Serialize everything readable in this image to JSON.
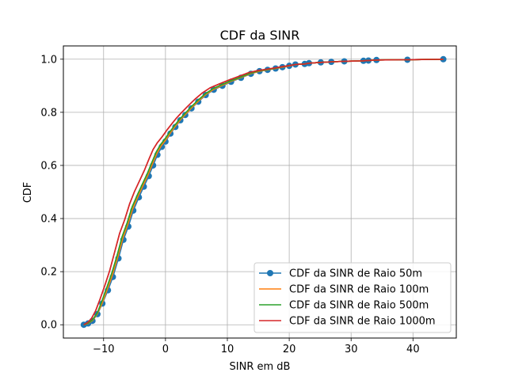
{
  "chart_data": {
    "type": "line",
    "title": "CDF da SINR",
    "xlabel": "SINR em dB",
    "ylabel": "CDF",
    "xlim": [
      -16.5,
      47
    ],
    "ylim": [
      -0.05,
      1.05
    ],
    "xticks": [
      -10,
      0,
      10,
      20,
      30,
      40
    ],
    "xtick_labels": [
      "−10",
      "0",
      "10",
      "20",
      "30",
      "40"
    ],
    "yticks": [
      0.0,
      0.2,
      0.4,
      0.6,
      0.8,
      1.0
    ],
    "ytick_labels": [
      "0.0",
      "0.2",
      "0.4",
      "0.6",
      "0.8",
      "1.0"
    ],
    "grid": true,
    "legend_position": "lower-right",
    "series": [
      {
        "name": "CDF da SINR de Raio 50m",
        "color": "#1f77b4",
        "marker": "circle",
        "x": [
          -13.2,
          -12.5,
          -11.8,
          -11.0,
          -10.2,
          -9.3,
          -8.5,
          -7.6,
          -6.8,
          -6.0,
          -5.2,
          -4.3,
          -3.5,
          -2.7,
          -2.0,
          -1.3,
          -0.6,
          0.0,
          0.8,
          1.6,
          2.4,
          3.2,
          4.2,
          5.3,
          6.5,
          7.8,
          9.2,
          10.6,
          12.2,
          13.8,
          15.2,
          16.5,
          17.8,
          18.9,
          20.0,
          21.0,
          22.5,
          23.2,
          25.1,
          26.8,
          28.9,
          32.0,
          32.8,
          34.1,
          39.1,
          44.9
        ],
        "y": [
          0.0,
          0.005,
          0.015,
          0.04,
          0.08,
          0.13,
          0.18,
          0.25,
          0.32,
          0.37,
          0.43,
          0.48,
          0.52,
          0.56,
          0.6,
          0.64,
          0.67,
          0.69,
          0.72,
          0.745,
          0.77,
          0.79,
          0.815,
          0.84,
          0.865,
          0.885,
          0.9,
          0.915,
          0.93,
          0.945,
          0.955,
          0.96,
          0.965,
          0.97,
          0.975,
          0.98,
          0.982,
          0.985,
          0.988,
          0.99,
          0.992,
          0.994,
          0.995,
          0.997,
          0.998,
          1.0
        ]
      },
      {
        "name": "CDF da SINR de Raio 100m",
        "color": "#ff7f0e",
        "marker": "none",
        "x": [
          -13.2,
          -12.5,
          -11.8,
          -11.0,
          -10.2,
          -9.4,
          -8.6,
          -7.7,
          -6.9,
          -6.1,
          -5.3,
          -4.4,
          -3.6,
          -2.8,
          -2.1,
          -1.4,
          -0.7,
          0.0,
          0.8,
          1.6,
          2.4,
          3.2,
          4.2,
          5.3,
          6.5,
          7.8,
          9.2,
          10.6,
          12.2,
          13.8,
          15.2,
          16.5,
          17.8,
          18.9,
          20.0,
          21.0,
          22.5,
          23.2,
          25.1,
          26.8,
          28.9,
          32.0,
          32.8,
          34.1,
          39.1,
          44.9
        ],
        "y": [
          0.0,
          0.005,
          0.016,
          0.042,
          0.083,
          0.134,
          0.186,
          0.256,
          0.326,
          0.377,
          0.437,
          0.486,
          0.526,
          0.566,
          0.606,
          0.645,
          0.674,
          0.695,
          0.723,
          0.748,
          0.772,
          0.792,
          0.817,
          0.842,
          0.867,
          0.887,
          0.902,
          0.917,
          0.931,
          0.946,
          0.955,
          0.96,
          0.965,
          0.97,
          0.975,
          0.98,
          0.982,
          0.985,
          0.988,
          0.99,
          0.992,
          0.994,
          0.995,
          0.997,
          0.998,
          1.0
        ]
      },
      {
        "name": "CDF da SINR de Raio 500m",
        "color": "#2ca02c",
        "marker": "none",
        "x": [
          -13.2,
          -12.5,
          -11.8,
          -11.0,
          -10.3,
          -9.5,
          -8.7,
          -7.8,
          -7.0,
          -6.2,
          -5.4,
          -4.5,
          -3.7,
          -2.9,
          -2.2,
          -1.5,
          -0.8,
          -0.1,
          0.7,
          1.5,
          2.3,
          3.1,
          4.1,
          5.2,
          6.4,
          7.7,
          9.1,
          10.5,
          12.1,
          13.7,
          15.1,
          16.5,
          17.8,
          18.9,
          20.0,
          21.0,
          22.5,
          23.2,
          25.1,
          26.8,
          28.9,
          32.0,
          32.8,
          34.1,
          39.1,
          44.9
        ],
        "y": [
          0.0,
          0.006,
          0.018,
          0.045,
          0.087,
          0.139,
          0.192,
          0.262,
          0.332,
          0.383,
          0.443,
          0.491,
          0.531,
          0.571,
          0.611,
          0.65,
          0.678,
          0.699,
          0.726,
          0.751,
          0.774,
          0.794,
          0.819,
          0.844,
          0.869,
          0.889,
          0.904,
          0.918,
          0.932,
          0.947,
          0.956,
          0.961,
          0.966,
          0.971,
          0.976,
          0.98,
          0.982,
          0.985,
          0.988,
          0.99,
          0.992,
          0.994,
          0.995,
          0.997,
          0.998,
          1.0
        ]
      },
      {
        "name": "CDF da SINR de Raio 1000m",
        "color": "#d62728",
        "marker": "none",
        "x": [
          -13.2,
          -12.6,
          -12.0,
          -11.3,
          -10.6,
          -9.8,
          -9.0,
          -8.2,
          -7.4,
          -6.6,
          -5.8,
          -5.0,
          -4.2,
          -3.4,
          -2.7,
          -2.0,
          -1.3,
          -0.6,
          0.2,
          1.0,
          1.8,
          2.6,
          3.6,
          4.7,
          5.9,
          7.2,
          8.7,
          10.2,
          11.8,
          13.4,
          14.9,
          16.3,
          17.7,
          18.9,
          20.0,
          21.0,
          22.5,
          23.2,
          25.1,
          26.8,
          28.9,
          32.0,
          32.8,
          34.1,
          39.1,
          44.9
        ],
        "y": [
          0.0,
          0.008,
          0.022,
          0.052,
          0.095,
          0.148,
          0.205,
          0.275,
          0.345,
          0.395,
          0.455,
          0.502,
          0.542,
          0.582,
          0.622,
          0.66,
          0.686,
          0.706,
          0.732,
          0.756,
          0.779,
          0.799,
          0.823,
          0.848,
          0.872,
          0.892,
          0.907,
          0.921,
          0.935,
          0.949,
          0.957,
          0.962,
          0.967,
          0.972,
          0.976,
          0.98,
          0.982,
          0.985,
          0.988,
          0.99,
          0.992,
          0.994,
          0.995,
          0.997,
          0.998,
          1.0
        ]
      }
    ]
  }
}
